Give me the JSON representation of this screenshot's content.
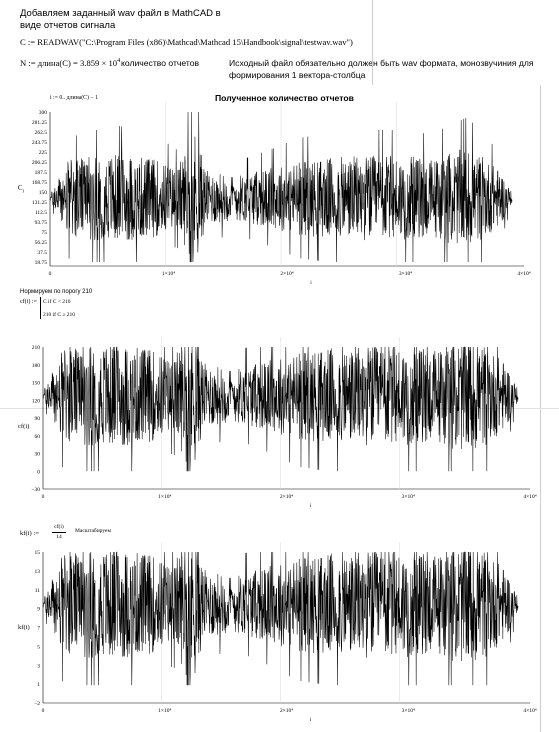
{
  "worksheet": {
    "intro_line1": "Добавляем заданный wav файл в MathCAD в",
    "intro_line2": "виде отчетов сигнала",
    "readwav_expr": "C := READWAV(\"C:\\Program Files (x86)\\Mathcad\\Mathcad 15\\Handbook\\signal\\testwav.wav\")",
    "length_expr": "N := длина(C) = 3.859 × 10",
    "length_exp": "4",
    "length_note": "количество отчетов",
    "note_line1": "Исходный файл обязательно должен быть wav формата, монозвучиния для",
    "note_line2": "формирования 1 вектора-столбца",
    "range_expr": "i := 0.. длина(C) − 1",
    "section2_title": "Нормируем по порогу 210",
    "cf_def_lhs": "cf(i) :=",
    "cf_case1": "C  if  C  < 210",
    "cf_case2": "210  if  C  ≥ 210",
    "kf_def_lhs": "kf(i) :=",
    "kf_num": "cf(i)",
    "kf_den": "14",
    "kf_note": "Масштабируем"
  },
  "chart_data": [
    {
      "type": "line",
      "title": "Полученное количество отчетов",
      "ylabel": "C",
      "ylabel_sub": "i",
      "xlabel": "i",
      "xlim": [
        0,
        40000
      ],
      "ylim": [
        0,
        300
      ],
      "yticks": [
        "300",
        "281.25",
        "262.5",
        "243.75",
        "225",
        "206.25",
        "187.5",
        "168.75",
        "150",
        "131.25",
        "112.5",
        "93.75",
        "75",
        "56.25",
        "37.5",
        "18.75"
      ],
      "xticks": [
        "0",
        "1×10⁴",
        "2×10⁴",
        "3×10⁴",
        "4×10⁴"
      ],
      "center": 128,
      "clip_max": 300,
      "clip_min": 0,
      "envelope": [
        [
          0,
          6
        ],
        [
          1500,
          75
        ],
        [
          4000,
          85
        ],
        [
          6000,
          90
        ],
        [
          9000,
          80
        ],
        [
          11000,
          60
        ],
        [
          12500,
          140
        ],
        [
          13500,
          55
        ],
        [
          16000,
          45
        ],
        [
          19000,
          60
        ],
        [
          21500,
          75
        ],
        [
          24000,
          80
        ],
        [
          27000,
          85
        ],
        [
          30000,
          85
        ],
        [
          33000,
          80
        ],
        [
          36000,
          100
        ],
        [
          37000,
          90
        ],
        [
          39000,
          55
        ],
        [
          40000,
          10
        ]
      ]
    },
    {
      "type": "line",
      "title": "",
      "ylabel": "cf(i)",
      "xlabel": "i",
      "xlim": [
        0,
        40000
      ],
      "ylim": [
        -30,
        210
      ],
      "yticks": [
        "210",
        "180",
        "150",
        "120",
        "90",
        "60",
        "30",
        "0",
        "−30"
      ],
      "xticks": [
        "0",
        "1×10⁴",
        "2×10⁴",
        "3×10⁴",
        "4×10⁴"
      ],
      "center": 128,
      "clip_max": 210,
      "clip_min": 0,
      "envelope": [
        [
          0,
          6
        ],
        [
          1500,
          75
        ],
        [
          4000,
          85
        ],
        [
          6000,
          90
        ],
        [
          9000,
          80
        ],
        [
          11000,
          60
        ],
        [
          12500,
          140
        ],
        [
          13500,
          55
        ],
        [
          16000,
          45
        ],
        [
          19000,
          60
        ],
        [
          21500,
          75
        ],
        [
          24000,
          80
        ],
        [
          27000,
          85
        ],
        [
          30000,
          85
        ],
        [
          33000,
          80
        ],
        [
          36000,
          100
        ],
        [
          37000,
          90
        ],
        [
          39000,
          55
        ],
        [
          40000,
          10
        ]
      ]
    },
    {
      "type": "line",
      "title": "",
      "ylabel": "kf(i)",
      "xlabel": "i",
      "xlim": [
        0,
        40000
      ],
      "ylim": [
        -2,
        15
      ],
      "yticks": [
        "15",
        "13",
        "11",
        "9",
        "7",
        "5",
        "3",
        "1",
        "−2"
      ],
      "xticks": [
        "0",
        "1×10⁴",
        "2×10⁴",
        "3×10⁴",
        "4×10⁴"
      ],
      "center": 9.14,
      "clip_max": 15,
      "clip_min": 0,
      "envelope": [
        [
          0,
          0.4
        ],
        [
          1500,
          5.4
        ],
        [
          4000,
          6.1
        ],
        [
          6000,
          6.4
        ],
        [
          9000,
          5.7
        ],
        [
          11000,
          4.3
        ],
        [
          12500,
          10
        ],
        [
          13500,
          3.9
        ],
        [
          16000,
          3.2
        ],
        [
          19000,
          4.3
        ],
        [
          21500,
          5.4
        ],
        [
          24000,
          5.7
        ],
        [
          27000,
          6.1
        ],
        [
          30000,
          6.1
        ],
        [
          33000,
          5.7
        ],
        [
          36000,
          7.1
        ],
        [
          37000,
          6.4
        ],
        [
          39000,
          3.9
        ],
        [
          40000,
          0.7
        ]
      ]
    }
  ]
}
